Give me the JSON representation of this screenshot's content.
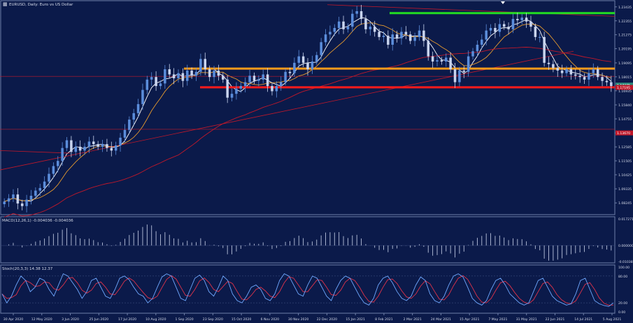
{
  "window": {
    "title": "EURUSD, Daily:  Euro vs US Dollar",
    "colors": {
      "background": "#0b1a4a",
      "frame": "#6e7fa8",
      "text": "#d7dcea",
      "bull": "#5b8ddb",
      "bear": "#c9d4ee",
      "ma_fast": "#ffffff",
      "ma_mid": "#e59a2f",
      "ma_slow": "#c0182a",
      "support": "#ff1a1a",
      "pivot": "#ff9b1a",
      "resistance": "#22dd22"
    }
  },
  "chart_data": [
    {
      "type": "line",
      "subtype": "candlestick",
      "title": "EURUSD, Daily:  Euro vs US Dollar",
      "x_ticks": [
        "30 Apr 2020",
        "12 May 2020",
        "3 Jun 2020",
        "25 Jun 2020",
        "17 Jul 2020",
        "10 Aug 2020",
        "1 Sep 2020",
        "23 Sep 2020",
        "15 Oct 2020",
        "6 Nov 2020",
        "30 Nov 2020",
        "22 Dec 2020",
        "15 Jan 2021",
        "8 Feb 2021",
        "2 Mar 2021",
        "24 Mar 2021",
        "15 Apr 2021",
        "7 May 2021",
        "31 May 2021",
        "22 Jun 2021",
        "14 Jul 2021",
        "5 Aug 2021"
      ],
      "y_ticks": [
        "1.23435",
        "1.22355",
        "1.21275",
        "1.20195",
        "1.19095",
        "1.18015",
        "1.16935",
        "1.15840",
        "1.14755",
        "1.13670",
        "1.12585",
        "1.11505",
        "1.10425",
        "1.09335",
        "1.08245"
      ],
      "ylim": [
        1.075,
        1.2375
      ],
      "series": [
        {
          "values": [
            1.0835,
            1.086,
            1.089,
            1.082,
            1.08,
            1.085,
            1.088,
            1.092,
            1.094,
            1.099,
            1.105,
            1.111,
            1.115,
            1.125,
            1.131,
            1.122,
            1.126,
            1.123,
            1.126,
            1.13,
            1.128,
            1.126,
            1.128,
            1.125,
            1.123,
            1.127,
            1.133,
            1.139,
            1.147,
            1.152,
            1.159,
            1.17,
            1.178,
            1.18,
            1.173,
            1.175,
            1.186,
            1.182,
            1.179,
            1.183,
            1.177,
            1.185,
            1.181,
            1.184,
            1.194,
            1.186,
            1.18,
            1.185,
            1.181,
            1.178,
            1.164,
            1.167,
            1.171,
            1.173,
            1.176,
            1.181,
            1.177,
            1.178,
            1.182,
            1.173,
            1.169,
            1.173,
            1.176,
            1.184,
            1.183,
            1.191,
            1.196,
            1.191,
            1.186,
            1.192,
            1.197,
            1.207,
            1.213,
            1.215,
            1.218,
            1.223,
            1.217,
            1.219,
            1.229,
            1.231,
            1.225,
            1.217,
            1.219,
            1.215,
            1.211,
            1.212,
            1.205,
            1.213,
            1.21,
            1.215,
            1.213,
            1.208,
            1.211,
            1.216,
            1.208,
            1.196,
            1.192,
            1.193,
            1.192,
            1.195,
            1.186,
            1.176,
            1.185,
            1.184,
            1.196,
            1.2,
            1.205,
            1.209,
            1.216,
            1.218,
            1.215,
            1.221,
            1.219,
            1.217,
            1.225,
            1.224,
            1.226,
            1.223,
            1.219,
            1.211,
            1.211,
            1.191,
            1.19,
            1.187,
            1.185,
            1.183,
            1.186,
            1.182,
            1.181,
            1.18,
            1.178,
            1.183,
            1.186,
            1.18,
            1.177,
            1.176,
            1.173
          ]
        }
      ],
      "indicator_labels": {
        "main": [
          "EURUSD, Daily:  Euro vs US Dollar"
        ],
        "macd": "MACD(12,26,1) -0.004036 -0.004036",
        "stoch": "Stoch(20,3,3) 14.38 12.37"
      },
      "levels": [
        {
          "name": "resistance",
          "value": 1.2295
        },
        {
          "name": "pivot",
          "value": 1.1865
        },
        {
          "name": "support",
          "value": 1.172
        },
        {
          "name": "thin-upper",
          "value": 1.1805
        },
        {
          "name": "thin-lower",
          "value": 1.1395
        }
      ],
      "price_tags": {
        "current": "1.17375",
        "support": "1.17195",
        "lower": "1.13670"
      }
    },
    {
      "type": "bar",
      "title": "MACD(12,26,1) -0.004036 -0.004036",
      "y_ticks": [
        "0.017271",
        "0.000000",
        "-0.010383"
      ],
      "ylim": [
        -0.0104,
        0.0173
      ]
    },
    {
      "type": "line",
      "title": "Stoch(20,3,3) 14.38 12.37",
      "y_ticks": [
        "100.00",
        "80.00",
        "20.00",
        "0.00"
      ],
      "ylim": [
        0,
        100
      ],
      "series": [
        {
          "values": [
            40,
            20,
            35,
            60,
            80,
            70,
            45,
            55,
            75,
            70,
            50,
            35,
            60,
            85,
            80,
            65,
            50,
            30,
            45,
            70,
            75,
            55,
            35,
            30,
            50,
            75,
            80,
            72,
            55,
            40,
            35,
            20,
            30,
            55,
            78,
            85,
            80,
            55,
            30,
            25,
            50,
            75,
            82,
            70,
            45,
            35,
            55,
            80,
            70,
            40,
            25,
            20,
            35,
            55,
            60,
            50,
            30,
            25,
            40,
            70,
            85,
            80,
            60,
            40,
            35,
            60,
            80,
            75,
            55,
            35,
            25,
            50,
            70,
            80,
            75,
            55,
            35,
            20,
            15,
            30,
            60,
            75,
            80,
            65,
            45,
            30,
            25,
            35,
            60,
            78,
            70,
            40,
            25,
            20,
            35,
            60,
            80,
            85,
            78,
            55,
            30,
            20,
            15,
            25,
            50,
            70,
            75,
            60,
            40,
            30,
            20,
            15,
            20,
            45,
            70,
            75,
            55,
            35,
            25,
            20,
            15,
            18,
            40,
            70,
            75,
            50,
            25,
            18,
            14,
            12,
            20
          ]
        }
      ]
    }
  ]
}
